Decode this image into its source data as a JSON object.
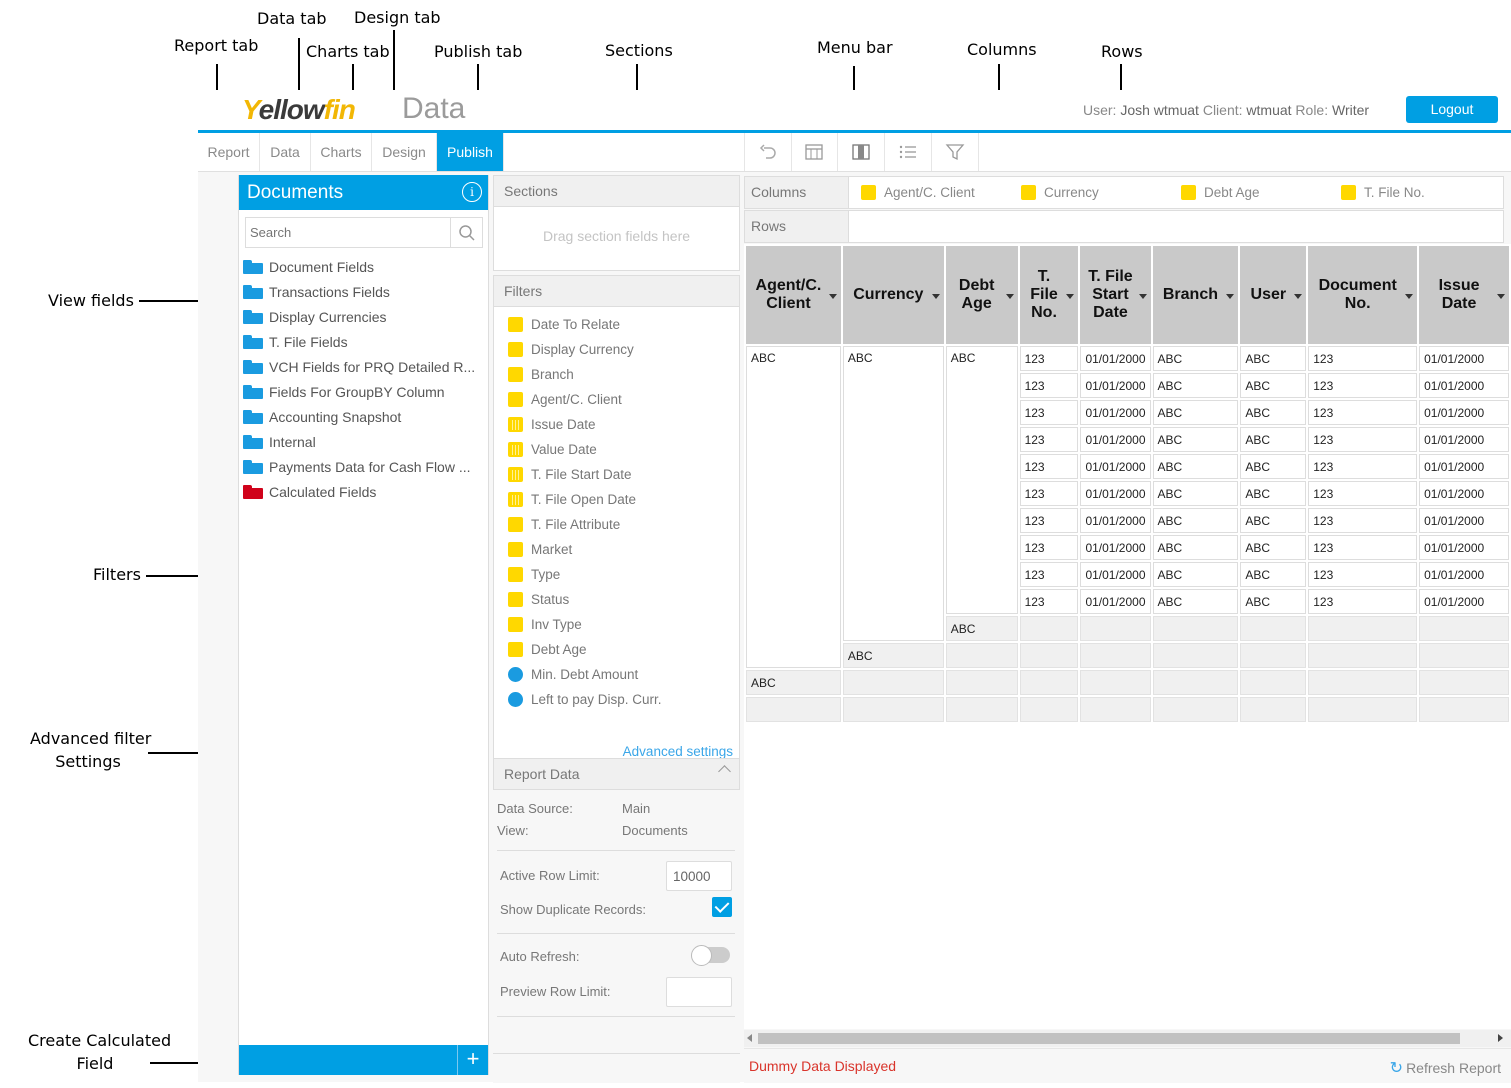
{
  "callouts": {
    "report_tab": "Report tab",
    "data_tab": "Data tab",
    "charts_tab": "Charts tab",
    "design_tab": "Design tab",
    "publish_tab": "Publish tab",
    "sections": "Sections",
    "menu_bar": "Menu bar",
    "columns": "Columns",
    "rows": "Rows",
    "view_fields": "View fields",
    "filters": "Filters",
    "advanced_line1": "Advanced filter",
    "advanced_line2": "Settings",
    "create_line1": "Create Calculated",
    "create_line2": "Field"
  },
  "header": {
    "logo": "Yellowfin",
    "page_title": "Data",
    "user_label": "User:",
    "user_value": "Josh wtmuat",
    "client_label": "Client:",
    "client_value": "wtmuat",
    "role_label": "Role:",
    "role_value": "Writer",
    "logout": "Logout"
  },
  "tabs": [
    "Report",
    "Data",
    "Charts",
    "Design",
    "Publish"
  ],
  "active_tab": "Publish",
  "toolbar_icons": [
    "undo-icon",
    "table-columns-icon",
    "column-settings-icon",
    "list-sort-icon",
    "filter-icon"
  ],
  "documents": {
    "title": "Documents",
    "info_icon": "i",
    "search_placeholder": "Search",
    "folders": [
      {
        "label": "Document Fields",
        "color": "#1a9be0"
      },
      {
        "label": "Transactions Fields",
        "color": "#1a9be0"
      },
      {
        "label": "Display Currencies",
        "color": "#1a9be0"
      },
      {
        "label": "T. File Fields",
        "color": "#1a9be0"
      },
      {
        "label": "VCH Fields for PRQ Detailed R...",
        "color": "#1a9be0"
      },
      {
        "label": "Fields For GroupBY Column",
        "color": "#1a9be0"
      },
      {
        "label": "Accounting Snapshot",
        "color": "#1a9be0"
      },
      {
        "label": "Internal",
        "color": "#1a9be0"
      },
      {
        "label": "Payments Data for Cash Flow ...",
        "color": "#1a9be0"
      },
      {
        "label": "Calculated Fields",
        "color": "#d0021b"
      }
    ],
    "add_label": "+"
  },
  "sections": {
    "title": "Sections",
    "drop_hint": "Drag section fields here"
  },
  "filters": {
    "title": "Filters",
    "items": [
      {
        "label": "Date To Relate",
        "icon": "sq"
      },
      {
        "label": "Display Currency",
        "icon": "sq"
      },
      {
        "label": "Branch",
        "icon": "sq"
      },
      {
        "label": "Agent/C. Client",
        "icon": "sq"
      },
      {
        "label": "Issue Date",
        "icon": "cal"
      },
      {
        "label": "Value Date",
        "icon": "cal"
      },
      {
        "label": "T. File Start Date",
        "icon": "cal"
      },
      {
        "label": "T. File Open Date",
        "icon": "cal"
      },
      {
        "label": "T. File Attribute",
        "icon": "sq"
      },
      {
        "label": "Market",
        "icon": "sq"
      },
      {
        "label": "Type",
        "icon": "sq"
      },
      {
        "label": "Status",
        "icon": "sq"
      },
      {
        "label": "Inv Type",
        "icon": "sq"
      },
      {
        "label": "Debt Age",
        "icon": "sq"
      },
      {
        "label": "Min. Debt Amount",
        "icon": "dot"
      },
      {
        "label": "Left to pay Disp. Curr.",
        "icon": "dot"
      }
    ],
    "advanced": "Advanced settings"
  },
  "report_data": {
    "title": "Report Data",
    "data_source_label": "Data Source:",
    "data_source_value": "Main",
    "view_label": "View:",
    "view_value": "Documents",
    "active_row_limit_label": "Active Row Limit:",
    "active_row_limit_value": "10000",
    "show_duplicates_label": "Show Duplicate Records:",
    "auto_refresh_label": "Auto Refresh:",
    "preview_row_limit_label": "Preview Row Limit:",
    "preview_row_limit_value": ""
  },
  "columns_bar": {
    "label": "Columns",
    "fields": [
      "Agent/C. Client",
      "Currency",
      "Debt Age",
      "T. File No."
    ]
  },
  "rows_bar": {
    "label": "Rows"
  },
  "table": {
    "headers": [
      "Agent/C. Client",
      "Currency",
      "Debt Age",
      "T. File No.",
      "T. File Start Date",
      "Branch",
      "User",
      "Document No.",
      "Issue Date"
    ],
    "group_value": "ABC",
    "detail_row": [
      "123",
      "01/01/2000",
      "ABC",
      "ABC",
      "123",
      "01/01/2000"
    ],
    "detail_row_count": 10,
    "subtotal_label": "ABC"
  },
  "status": {
    "dummy": "Dummy Data Displayed",
    "refresh": "Refresh Report"
  }
}
